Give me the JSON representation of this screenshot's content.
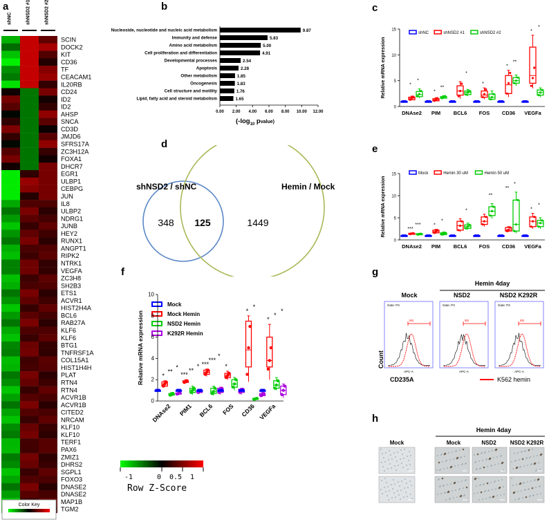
{
  "panel_labels": {
    "a": "a",
    "b": "b",
    "c": "c",
    "d": "d",
    "e": "e",
    "f": "f",
    "g": "g",
    "h": "h"
  },
  "heatmap": {
    "columns": [
      "shNC",
      "shNSD2 #1",
      "shNSD2 #2"
    ],
    "genes": [
      "SCIN",
      "DOCK2",
      "KIT",
      "CD36",
      "TF",
      "CEACAM1",
      "IL20RB",
      "CD24",
      "ID2",
      "ID2",
      "AHSP",
      "SNCA",
      "CD3D",
      "JMJD6",
      "SFRS17A",
      "ZC3H12A",
      "FOXA1",
      "DHCR7",
      "EGR1",
      "ULBP1",
      "CEBPG",
      "JUN",
      "IL8",
      "ULBP2",
      "NDRG1",
      "JUNB",
      "HEY2",
      "RUNX1",
      "ANGPT1",
      "RIPK2",
      "NTRK1",
      "VEGFA",
      "ZC3H8",
      "SH2B3",
      "ETS1",
      "ACVR1",
      "HIST2H4A",
      "BCL6",
      "RAB27A",
      "KLF6",
      "KLF6",
      "BTG1",
      "TNFRSF1A",
      "COL15A1",
      "HIST1H4H",
      "PLAT",
      "RTN4",
      "RTN4",
      "ACVR1B",
      "ACVR1B",
      "CITED2",
      "NRCAM",
      "KLF10",
      "KLF10",
      "TERF1",
      "PAX6",
      "ZMIZ1",
      "DHRS2",
      "SGPL1",
      "FOXO3",
      "DNASE2",
      "DNASE2",
      "MAP1B",
      "TGM2"
    ],
    "scale_ticks": [
      "-1",
      "0",
      "0.5",
      "1"
    ],
    "scale_title": "Row Z-Score",
    "color_key_label": "Color Key",
    "colors": {
      "low": "#00ff00",
      "mid": "#000000",
      "high": "#ff0000"
    }
  },
  "chart_data": [
    {
      "panel": "b",
      "type": "bar",
      "orientation": "horizontal",
      "categories": [
        "Nucleoside, nucleotide and nucleic acid metabolism",
        "Immunity and defense",
        "Amino acid metabolism",
        "Cell proliferation and differentiation",
        "Developmental processes",
        "Apoptosis",
        "Other metabolism",
        "Oncogenesis",
        "Cell structure and motility",
        "Lipid, fatty acid and steroid metabolism"
      ],
      "values": [
        9.87,
        5.83,
        5.0,
        4.91,
        2.54,
        2.28,
        1.85,
        1.83,
        1.76,
        1.65
      ],
      "value_labels": [
        "9.87",
        "5.83",
        "5.00",
        "4.91",
        "2.54",
        "2.28",
        "1.85",
        "1.83",
        "1.76",
        "1.65"
      ],
      "xlim": [
        0,
        12
      ],
      "xticks": [
        "0.00",
        "2.00",
        "4.00",
        "6.00",
        "8.00",
        "10.00",
        "12.00"
      ],
      "xlabel_prefix": "(-log",
      "xlabel_sub": "10",
      "xlabel_suffix": " p",
      "xlabel_tail": "value)",
      "bar_color": "#000000"
    },
    {
      "panel": "c",
      "type": "box",
      "categories": [
        "DNAse2",
        "PIM",
        "BCL6",
        "FOS",
        "CD36",
        "VEGFa"
      ],
      "ylabel": "Relative mRNA expression",
      "ylim": [
        0,
        15
      ],
      "yticks": [
        "0",
        "5",
        "10",
        "15"
      ],
      "series": [
        {
          "name": "shNC",
          "color": "#0000ff",
          "boxes": [
            [
              1,
              1,
              1,
              1,
              1
            ],
            [
              1,
              1,
              1,
              1,
              1
            ],
            [
              1,
              1,
              1,
              1,
              1
            ],
            [
              1,
              1,
              1,
              1,
              1
            ],
            [
              1,
              1,
              1,
              1,
              1
            ],
            [
              1,
              1,
              1,
              1,
              1
            ]
          ],
          "points": [
            [
              1,
              1,
              1
            ],
            [
              1,
              1,
              1
            ],
            [
              1,
              1,
              1
            ],
            [
              1,
              1,
              1
            ],
            [
              1,
              1,
              1
            ],
            [
              1,
              1,
              1
            ]
          ]
        },
        {
          "name": "shNSD2 #1",
          "color": "#ff0000",
          "boxes": [
            [
              1.2,
              1.3,
              1.6,
              1.8,
              2.0
            ],
            [
              1.0,
              1.1,
              1.3,
              1.5,
              1.7
            ],
            [
              1.5,
              2.2,
              3.0,
              4.0,
              4.8
            ],
            [
              1.4,
              1.8,
              2.2,
              3.0,
              3.6
            ],
            [
              1.8,
              2.5,
              4.2,
              6.0,
              7.0
            ],
            [
              3.5,
              4.5,
              6.0,
              11.5,
              13.8
            ]
          ],
          "points": [
            [
              1.3,
              1.6,
              1.9
            ],
            [
              1.1,
              1.3,
              1.6
            ],
            [
              2.0,
              3.0,
              4.4
            ],
            [
              1.8,
              2.4,
              3.3
            ],
            [
              2.5,
              4.5,
              6.5
            ],
            [
              4.0,
              5.5,
              7.5
            ]
          ]
        },
        {
          "name": "shNSD2 #2",
          "color": "#00cc00",
          "boxes": [
            [
              1.6,
              1.9,
              2.3,
              2.9,
              3.4
            ],
            [
              1.5,
              1.6,
              1.8,
              1.9,
              2.1
            ],
            [
              2.0,
              2.3,
              2.7,
              3.0,
              3.3
            ],
            [
              1.2,
              1.4,
              1.8,
              2.4,
              3.0
            ],
            [
              4.0,
              4.5,
              5.0,
              5.6,
              6.1
            ],
            [
              1.8,
              2.2,
              2.7,
              3.2,
              3.6
            ]
          ],
          "points": [
            [
              2.0,
              2.4,
              3.0
            ],
            [
              1.6,
              1.8,
              2.0
            ],
            [
              2.3,
              2.7,
              3.0
            ],
            [
              1.4,
              1.8,
              2.4
            ],
            [
              4.5,
              5.0,
              5.6
            ],
            [
              2.2,
              2.7,
              3.2
            ]
          ]
        }
      ],
      "significance": [
        [
          "*",
          "*"
        ],
        [
          "*",
          "**"
        ],
        [
          "",
          "*"
        ],
        [
          "*",
          ""
        ],
        [
          "*",
          "**"
        ],
        [
          "*",
          "*"
        ]
      ]
    },
    {
      "panel": "e",
      "type": "box",
      "categories": [
        "DNAse2",
        "PIM",
        "BCL6",
        "FOS",
        "CD36",
        "VEGFa"
      ],
      "ylabel": "Relative mRNA expression",
      "ylim": [
        0,
        15
      ],
      "yticks": [
        "0",
        "5",
        "10",
        "15"
      ],
      "series": [
        {
          "name": "Mock",
          "color": "#0000ff",
          "boxes": [
            [
              1,
              1,
              1,
              1,
              1
            ],
            [
              1,
              1,
              1,
              1,
              1
            ],
            [
              1,
              1,
              1,
              1,
              1
            ],
            [
              1,
              1,
              1,
              1,
              1
            ],
            [
              1,
              1,
              1,
              1,
              1
            ],
            [
              1,
              1,
              1,
              1,
              1
            ]
          ],
          "points": [
            [
              1,
              1,
              1
            ],
            [
              1,
              1,
              1
            ],
            [
              1,
              1,
              1
            ],
            [
              1,
              1,
              1
            ],
            [
              1,
              1,
              1
            ],
            [
              1,
              1,
              1
            ]
          ]
        },
        {
          "name": "Hemin 30 uM",
          "color": "#ff0000",
          "boxes": [
            [
              1.2,
              1.3,
              1.4,
              1.5,
              1.6
            ],
            [
              1.4,
              1.6,
              1.9,
              2.2,
              2.4
            ],
            [
              1.8,
              2.2,
              3.2,
              4.2,
              4.8
            ],
            [
              3.0,
              3.5,
              4.2,
              5.2,
              5.8
            ],
            [
              1.8,
              2.0,
              2.3,
              2.8,
              3.0
            ],
            [
              2.5,
              3.0,
              4.2,
              5.2,
              6.0
            ]
          ],
          "points": [
            [
              1.3,
              1.4,
              1.5
            ],
            [
              1.6,
              1.9,
              2.2
            ],
            [
              2.2,
              3.2,
              4.2
            ],
            [
              3.5,
              4.2,
              5.2
            ],
            [
              2.0,
              2.3,
              2.8
            ],
            [
              3.0,
              4.2,
              5.2
            ]
          ]
        },
        {
          "name": "Hemin 50 uM",
          "color": "#00cc00",
          "boxes": [
            [
              1.1,
              1.2,
              1.3,
              1.4,
              1.5
            ],
            [
              1.0,
              1.2,
              1.4,
              1.6,
              1.8
            ],
            [
              2.3,
              2.6,
              3.0,
              3.4,
              3.8
            ],
            [
              4.8,
              5.5,
              6.5,
              7.5,
              8.2
            ],
            [
              1.5,
              2.0,
              3.5,
              9.0,
              10.8
            ],
            [
              2.5,
              3.0,
              3.8,
              4.4,
              5.0
            ]
          ],
          "points": [
            [
              1.2,
              1.3,
              1.4
            ],
            [
              1.2,
              1.4,
              1.6
            ],
            [
              2.6,
              3.0,
              3.4
            ],
            [
              5.5,
              6.5,
              7.5
            ],
            [
              2.0,
              3.5,
              9.0
            ],
            [
              3.0,
              3.8,
              4.4
            ]
          ]
        }
      ],
      "significance": [
        [
          "***",
          "***"
        ],
        [
          "*",
          "*"
        ],
        [
          "",
          "*"
        ],
        [
          "",
          "**"
        ],
        [
          "**",
          "*"
        ],
        [
          "*",
          "*"
        ]
      ]
    },
    {
      "panel": "f",
      "type": "box",
      "categories": [
        "DNAse2",
        "PIM1",
        "BCL6",
        "FOS",
        "CD36",
        "VEGFa"
      ],
      "ylabel": "Relative mRNA expression",
      "ylim": [
        0,
        10
      ],
      "yticks": [
        "0",
        "2",
        "4",
        "6",
        "8",
        "10"
      ],
      "series": [
        {
          "name": "Mock",
          "color": "#0000ff",
          "boxes": [
            [
              1,
              1,
              1,
              1,
              1
            ],
            [
              1,
              1,
              1,
              1,
              1
            ],
            [
              1,
              1,
              1,
              1,
              1
            ],
            [
              1,
              1,
              1,
              1,
              1
            ],
            [
              1,
              1,
              1,
              1,
              1
            ],
            [
              1,
              1,
              1,
              1,
              1
            ]
          ],
          "points": [
            [
              1,
              1,
              1
            ],
            [
              1,
              1,
              1
            ],
            [
              1,
              1,
              1
            ],
            [
              1,
              1,
              1
            ],
            [
              1,
              1,
              1
            ],
            [
              1,
              1,
              1
            ]
          ]
        },
        {
          "name": "Mock Hemin",
          "color": "#ff0000",
          "boxes": [
            [
              1.3,
              1.4,
              1.6,
              1.8,
              1.9
            ],
            [
              1.7,
              1.75,
              1.8,
              1.9,
              2.0
            ],
            [
              2.3,
              2.5,
              2.7,
              2.9,
              3.0
            ],
            [
              2.0,
              2.2,
              2.4,
              2.6,
              2.8
            ],
            [
              1.8,
              3.2,
              4.8,
              7.5,
              8.0
            ],
            [
              2.0,
              3.2,
              3.8,
              6.0,
              7.2
            ]
          ],
          "points": [
            [
              1.4,
              1.6,
              1.8
            ],
            [
              1.75,
              1.8,
              1.9
            ],
            [
              2.5,
              2.7,
              2.9
            ],
            [
              2.2,
              2.4,
              2.6
            ],
            [
              2.5,
              5.0,
              7.0
            ],
            [
              3.0,
              3.8,
              5.0
            ]
          ]
        },
        {
          "name": "NSD2 Hemin",
          "color": "#00cc00",
          "boxes": [
            [
              0.5,
              0.55,
              0.6,
              0.7,
              0.8
            ],
            [
              0.6,
              0.8,
              1.0,
              1.2,
              1.4
            ],
            [
              0.5,
              0.7,
              0.9,
              1.2,
              1.4
            ],
            [
              1.0,
              1.3,
              1.6,
              2.0,
              2.2
            ],
            [
              0.1,
              0.15,
              0.2,
              0.25,
              0.3
            ],
            [
              1.0,
              1.2,
              1.5,
              1.9,
              2.2
            ]
          ],
          "points": [
            [
              0.55,
              0.6,
              0.7
            ],
            [
              0.8,
              1.0,
              1.2
            ],
            [
              0.7,
              0.9,
              1.2
            ],
            [
              1.3,
              1.6,
              2.0
            ],
            [
              0.15,
              0.2,
              0.25
            ],
            [
              1.2,
              1.5,
              1.9
            ]
          ]
        },
        {
          "name": "K292R Hemin",
          "color": "#aa00dd",
          "boxes": [
            [
              0.6,
              0.65,
              0.7,
              0.75,
              0.8
            ],
            [
              0.7,
              0.8,
              0.9,
              1.0,
              1.1
            ],
            [
              0.6,
              0.8,
              1.0,
              1.2,
              1.3
            ],
            [
              0.6,
              0.8,
              1.0,
              1.1,
              1.2
            ],
            [
              0.4,
              0.5,
              0.6,
              0.7,
              0.8
            ],
            [
              0.3,
              0.6,
              1.0,
              1.4,
              1.6
            ]
          ],
          "points": [
            [
              0.65,
              0.7,
              0.75
            ],
            [
              0.8,
              0.9,
              1.0
            ],
            [
              0.8,
              1.0,
              1.2
            ],
            [
              0.8,
              1.0,
              1.1
            ],
            [
              0.5,
              0.6,
              0.7
            ],
            [
              0.6,
              1.0,
              1.4
            ]
          ]
        }
      ],
      "significance": [
        [
          "*",
          "**",
          "*"
        ],
        [
          "***",
          "**",
          "*"
        ],
        [
          "***",
          "***",
          "*"
        ],
        [
          "*",
          "",
          ""
        ],
        [
          "*",
          "*",
          ""
        ],
        [
          "*",
          "*",
          "*"
        ]
      ]
    }
  ],
  "venn": {
    "left_label": "shNSD2 / shNC",
    "right_label": "Hemin / Mock",
    "left_only": "348",
    "overlap": "125",
    "right_only": "1449",
    "left_color": "#5b87c7",
    "right_color": "#a7b957"
  },
  "flow": {
    "header": "Hemin  4day",
    "panels": [
      "Mock",
      "NSD2",
      "NSD2 K292R"
    ],
    "gate_label": "Gate: P3",
    "x_label": "APC-A",
    "y_label": "Count",
    "marker_label": "M1",
    "bottom_label": "CD235A",
    "legend_label": "K562 hemin",
    "legend_color": "#ff0000",
    "frame_color": "#6666ff"
  },
  "micro": {
    "header": "Hemin  4day",
    "columns": [
      "Mock",
      "Mock",
      "NSD2",
      "NSD2  K292R"
    ]
  }
}
